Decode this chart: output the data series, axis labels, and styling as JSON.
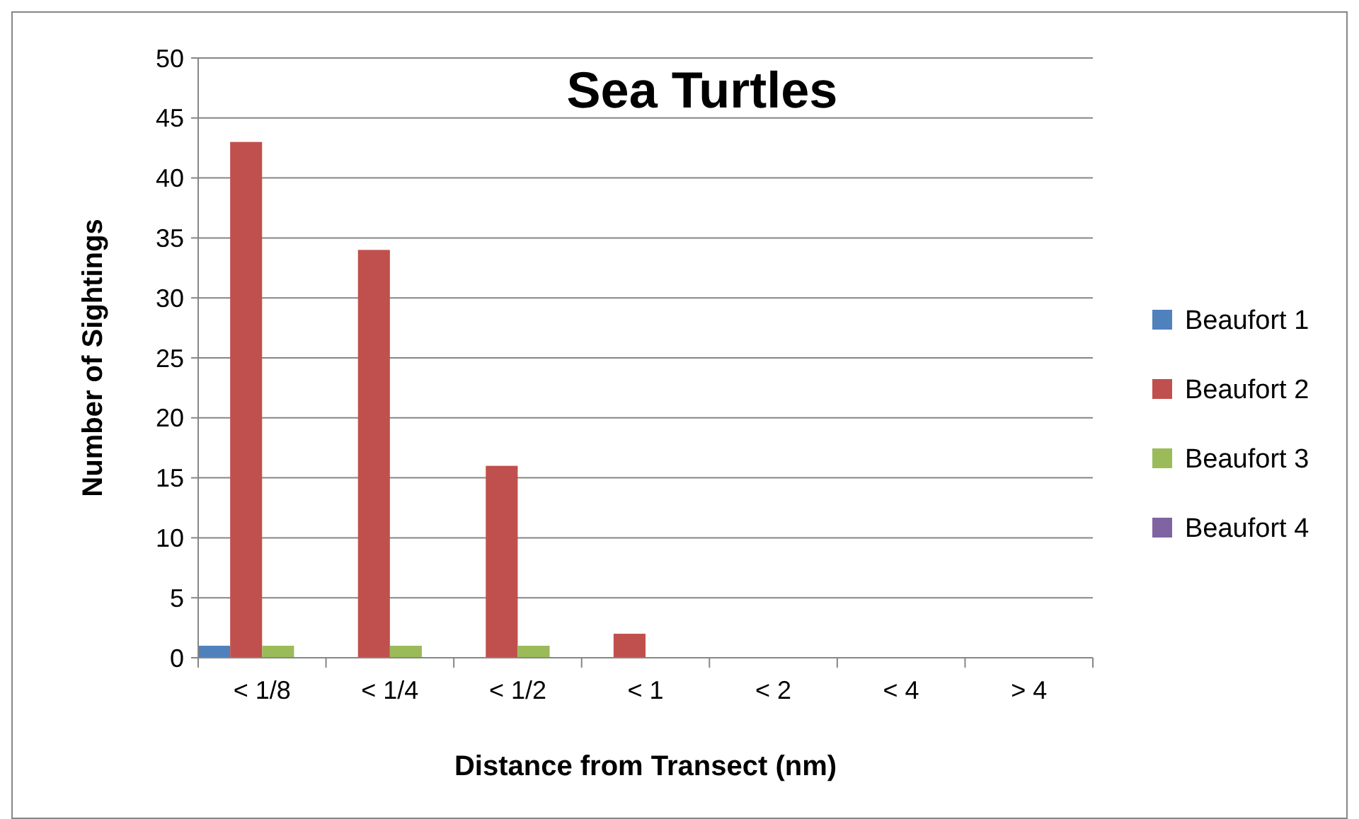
{
  "chart_data": {
    "type": "bar",
    "title": "Sea Turtles",
    "xlabel": "Distance from Transect (nm)",
    "ylabel": "Number of Sightings",
    "categories": [
      "< 1/8",
      "< 1/4",
      "< 1/2",
      "< 1",
      "< 2",
      "< 4",
      "> 4"
    ],
    "series": [
      {
        "name": "Beaufort 1",
        "color": "#4f81bd",
        "values": [
          1,
          0,
          0,
          0,
          0,
          0,
          0
        ]
      },
      {
        "name": "Beaufort 2",
        "color": "#c0504d",
        "values": [
          43,
          34,
          16,
          2,
          0,
          0,
          0
        ]
      },
      {
        "name": "Beaufort 3",
        "color": "#9bbb59",
        "values": [
          1,
          1,
          1,
          0,
          0,
          0,
          0
        ]
      },
      {
        "name": "Beaufort 4",
        "color": "#8064a2",
        "values": [
          0,
          0,
          0,
          0,
          0,
          0,
          0
        ]
      }
    ],
    "ylim": [
      0,
      50
    ],
    "yticks": [
      0,
      5,
      10,
      15,
      20,
      25,
      30,
      35,
      40,
      45,
      50
    ],
    "grid": "y",
    "legend": "right"
  }
}
